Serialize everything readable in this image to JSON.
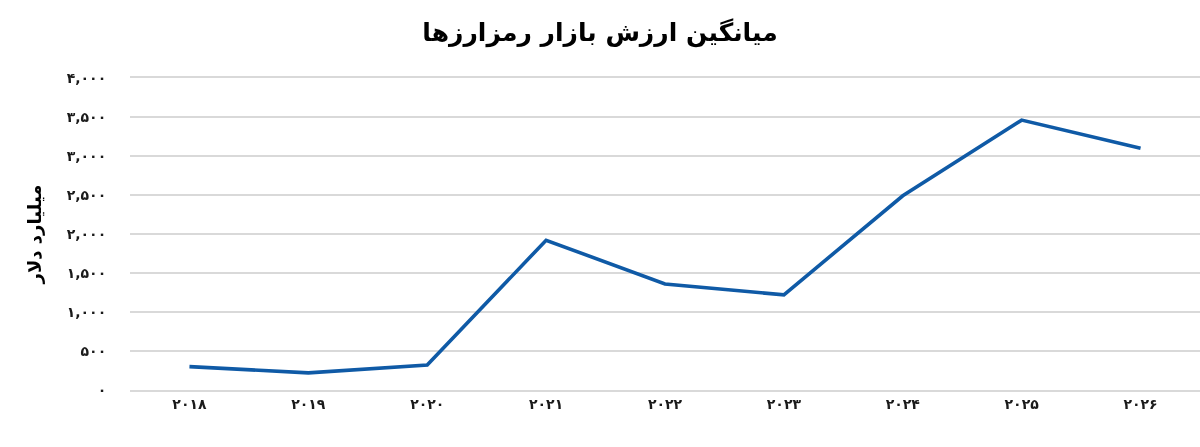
{
  "chart_data": {
    "type": "line",
    "title": "میانگین ارزش بازار رمزارزها",
    "ylabel": "میلیارد دلار",
    "categories": [
      "۲۰۱۸",
      "۲۰۱۹",
      "۲۰۲۰",
      "۲۰۲۱",
      "۲۰۲۲",
      "۲۰۲۳",
      "۲۰۲۴",
      "۲۰۲۵",
      "۲۰۲۶"
    ],
    "series": [
      {
        "color": "#0f5aa6",
        "values": [
          300,
          220,
          320,
          1920,
          1360,
          1220,
          2490,
          3460,
          3100
        ]
      }
    ],
    "ylim": [
      0,
      4000
    ],
    "yticks": [
      {
        "value": 0,
        "label": "۰"
      },
      {
        "value": 500,
        "label": "۵۰۰"
      },
      {
        "value": 1000,
        "label": "۱,۰۰۰"
      },
      {
        "value": 1500,
        "label": "۱,۵۰۰"
      },
      {
        "value": 2000,
        "label": "۲,۰۰۰"
      },
      {
        "value": 2500,
        "label": "۲,۵۰۰"
      },
      {
        "value": 3000,
        "label": "۳,۰۰۰"
      },
      {
        "value": 3500,
        "label": "۳,۵۰۰"
      },
      {
        "value": 4000,
        "label": "۴,۰۰۰"
      }
    ],
    "grid": "y",
    "marker": "none",
    "line_style": "solid"
  }
}
